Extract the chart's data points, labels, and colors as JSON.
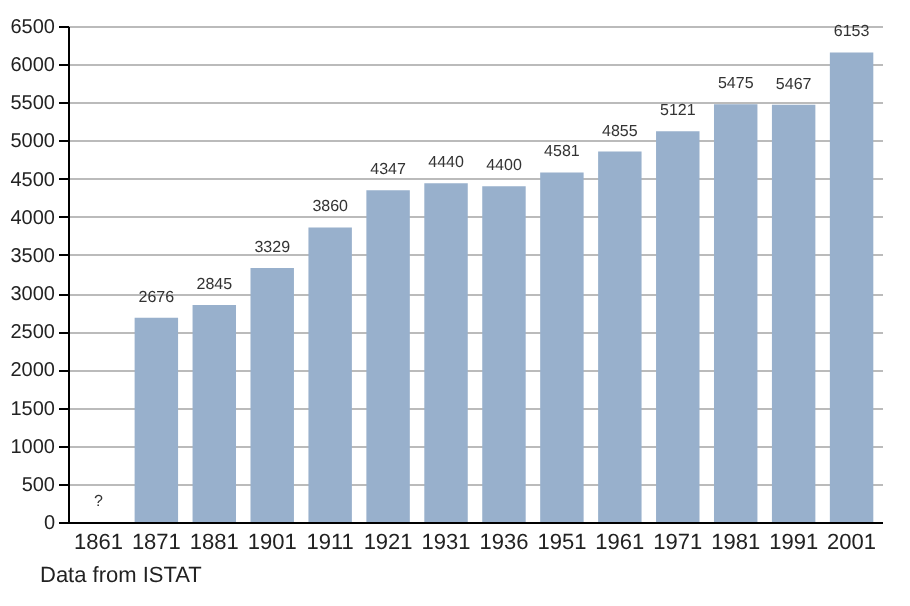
{
  "chart_data": {
    "type": "bar",
    "categories": [
      "1861",
      "1871",
      "1881",
      "1901",
      "1911",
      "1921",
      "1931",
      "1936",
      "1951",
      "1961",
      "1971",
      "1981",
      "1991",
      "2001"
    ],
    "values": [
      null,
      2676,
      2845,
      3329,
      3860,
      4347,
      4440,
      4400,
      4581,
      4855,
      5121,
      5475,
      5467,
      6153
    ],
    "value_labels": [
      "?",
      "2676",
      "2845",
      "3329",
      "3860",
      "4347",
      "4440",
      "4400",
      "4581",
      "4855",
      "5121",
      "5475",
      "5467",
      "6153"
    ],
    "color": "#98b0cc",
    "ylim": [
      0,
      6500
    ],
    "yticks": [
      0,
      500,
      1000,
      1500,
      2000,
      2500,
      3000,
      3500,
      4000,
      4500,
      5000,
      5500,
      6000,
      6500
    ],
    "grid": "y",
    "annotations": [
      "Data from ISTAT"
    ]
  }
}
